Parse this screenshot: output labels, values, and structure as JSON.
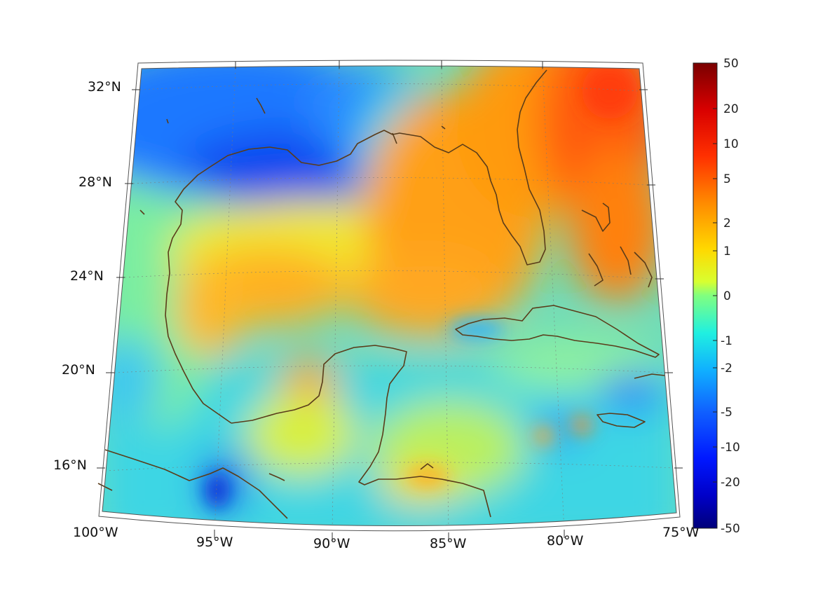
{
  "chart_data": {
    "type": "heatmap",
    "projection": "conic",
    "region": "Gulf of Mexico and Caribbean",
    "lon_ticks": [
      "100°W",
      "95°W",
      "90°W",
      "85°W",
      "80°W",
      "75°W"
    ],
    "lat_ticks": [
      "32°N",
      "28°N",
      "24°N",
      "20°N",
      "16°N"
    ],
    "lon_range": [
      -100,
      -75
    ],
    "lat_range": [
      14,
      33
    ],
    "colorbar": {
      "labels": [
        "50",
        "20",
        "10",
        "5",
        "2",
        "1",
        "0",
        "-1",
        "-2",
        "-5",
        "-10",
        "-20",
        "-50"
      ],
      "colormap": "jet",
      "scale": "symmetric-log"
    },
    "coastline_color": "#5a3c1a",
    "grid": "dotted",
    "colors": {
      "deep_blue": "#0a3cff",
      "blue": "#1e7dff",
      "cyan": "#18d8f0",
      "green": "#7cf0a0",
      "yellow": "#f0f020",
      "orange": "#ff9a10",
      "red": "#ff4a08",
      "dark_red": "#7a0000"
    }
  }
}
